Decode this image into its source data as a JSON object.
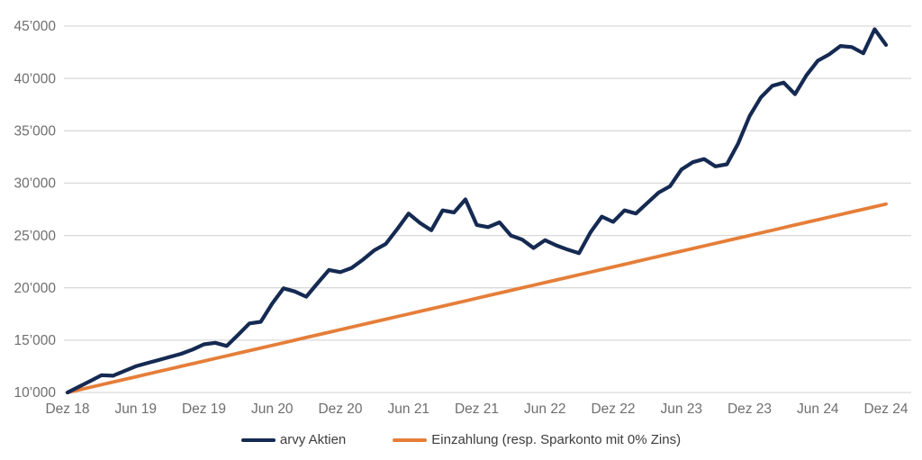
{
  "chart_data": {
    "type": "line",
    "title": "",
    "xlabel": "",
    "ylabel": "",
    "grid": "horizontal",
    "legend_position": "bottom-center",
    "background_color": "#ffffff",
    "gridline_color": "#d9d9d9",
    "axis_label_color": "#6e6e6e",
    "y_axis": {
      "min": 10000,
      "max": 45000,
      "step": 5000,
      "tick_values": [
        10000,
        15000,
        20000,
        25000,
        30000,
        35000,
        40000,
        45000
      ],
      "tick_labels": [
        "10’000",
        "15’000",
        "20’000",
        "25’000",
        "30’000",
        "35’000",
        "40’000",
        "45’000"
      ]
    },
    "x_axis": {
      "unit": "month",
      "first_month": "Dez 18",
      "last_month": "Dez 24",
      "points_count": 73,
      "tick_month_indices": [
        0,
        6,
        12,
        18,
        24,
        30,
        36,
        42,
        48,
        54,
        60,
        66,
        72
      ],
      "tick_labels": [
        "Dez 18",
        "Jun 19",
        "Dez 19",
        "Jun 20",
        "Dez 20",
        "Jun 21",
        "Dez 21",
        "Jun 22",
        "Dez 22",
        "Jun 23",
        "Dez 23",
        "Jun 24",
        "Dez 24"
      ]
    },
    "series": [
      {
        "name": "arvy Aktien",
        "color": "#152a52",
        "values": [
          10000,
          10550,
          11100,
          11650,
          11600,
          12050,
          12500,
          12800,
          13100,
          13400,
          13700,
          14100,
          14600,
          14750,
          14450,
          15500,
          16600,
          16750,
          18500,
          19950,
          19650,
          19150,
          20450,
          21700,
          21500,
          21900,
          22700,
          23600,
          24200,
          25600,
          27100,
          26200,
          25500,
          27400,
          27200,
          28450,
          26000,
          25800,
          26250,
          25000,
          24600,
          23800,
          24550,
          24050,
          23650,
          23300,
          25300,
          26800,
          26300,
          27400,
          27100,
          28100,
          29100,
          29700,
          31300,
          32000,
          32300,
          31600,
          31800,
          33800,
          36400,
          38200,
          39300,
          39600,
          38500,
          40300,
          41700,
          42300,
          43100,
          43000,
          42400,
          44700,
          43200
        ]
      },
      {
        "name": "Einzahlung (resp. Sparkonto mit 0% Zins)",
        "color": "#e57e39",
        "values": [
          10000,
          10250,
          10500,
          10750,
          11000,
          11250,
          11500,
          11750,
          12000,
          12250,
          12500,
          12750,
          13000,
          13250,
          13500,
          13750,
          14000,
          14250,
          14500,
          14750,
          15000,
          15250,
          15500,
          15750,
          16000,
          16250,
          16500,
          16750,
          17000,
          17250,
          17500,
          17750,
          18000,
          18250,
          18500,
          18750,
          19000,
          19250,
          19500,
          19750,
          20000,
          20250,
          20500,
          20750,
          21000,
          21250,
          21500,
          21750,
          22000,
          22250,
          22500,
          22750,
          23000,
          23250,
          23500,
          23750,
          24000,
          24250,
          24500,
          24750,
          25000,
          25250,
          25500,
          25750,
          26000,
          26250,
          26500,
          26750,
          27000,
          27250,
          27500,
          27750,
          28000
        ]
      }
    ]
  }
}
